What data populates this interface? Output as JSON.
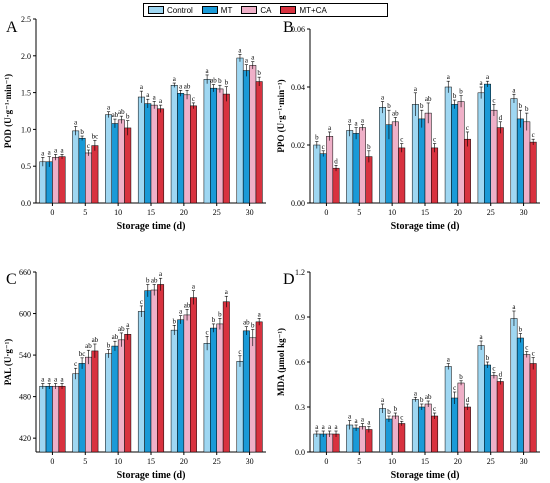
{
  "legend": {
    "series": [
      {
        "name": "Control",
        "color": "#9fd7f2"
      },
      {
        "name": "MT",
        "color": "#1a9ad7"
      },
      {
        "name": "CA",
        "color": "#efb0c8"
      },
      {
        "name": "MT+CA",
        "color": "#d8323f"
      }
    ]
  },
  "chart_data": [
    {
      "type": "bar",
      "panel": "A",
      "xlabel": "Storage time (d)",
      "ylabel": "POD (U·g⁻¹·min⁻¹)",
      "categories": [
        "0",
        "5",
        "10",
        "15",
        "20",
        "25",
        "30"
      ],
      "ylim": [
        0,
        2.5
      ],
      "yticks": [
        0.0,
        0.5,
        1.0,
        1.5,
        2.0,
        2.5
      ],
      "ytick_labels": [
        "0.0",
        "0.5",
        "1.0",
        "1.5",
        "2.0",
        "2.5"
      ],
      "series": [
        {
          "name": "Control",
          "values": [
            0.56,
            0.98,
            1.2,
            1.44,
            1.6,
            1.68,
            1.97
          ],
          "errors": [
            0.06,
            0.06,
            0.04,
            0.08,
            0.03,
            0.06,
            0.05
          ],
          "labels": [
            "a",
            "a",
            "a",
            "a",
            "a",
            "a",
            "a"
          ]
        },
        {
          "name": "MT",
          "values": [
            0.56,
            0.88,
            1.08,
            1.35,
            1.49,
            1.56,
            1.8
          ],
          "errors": [
            0.07,
            0.03,
            0.06,
            0.06,
            0.04,
            0.05,
            0.08
          ],
          "labels": [
            "a",
            "b",
            "ab",
            "a",
            "a",
            "ab",
            "a"
          ]
        },
        {
          "name": "CA",
          "values": [
            0.62,
            0.68,
            1.13,
            1.33,
            1.47,
            1.55,
            1.87
          ],
          "errors": [
            0.04,
            0.04,
            0.05,
            0.05,
            0.06,
            0.05,
            0.05
          ],
          "labels": [
            "a",
            "c",
            "ab",
            "a",
            "ab",
            "b",
            "a"
          ]
        },
        {
          "name": "MT+CA",
          "values": [
            0.63,
            0.78,
            1.02,
            1.28,
            1.32,
            1.48,
            1.65
          ],
          "errors": [
            0.03,
            0.07,
            0.1,
            0.05,
            0.04,
            0.1,
            0.06
          ],
          "labels": [
            "a",
            "bc",
            "b",
            "a",
            "c",
            "b",
            "b"
          ]
        }
      ]
    },
    {
      "type": "bar",
      "panel": "B",
      "xlabel": "Storage time (d)",
      "ylabel": "PPO (U·g⁻¹·min⁻¹)",
      "categories": [
        "0",
        "5",
        "10",
        "15",
        "20",
        "25",
        "30"
      ],
      "ylim": [
        0,
        0.06
      ],
      "yticks": [
        0.0,
        0.02,
        0.04,
        0.06
      ],
      "ytick_labels": [
        "0.00",
        "0.02",
        "0.04",
        "0.06"
      ],
      "series": [
        {
          "name": "Control",
          "values": [
            0.02,
            0.025,
            0.033,
            0.034,
            0.04,
            0.038,
            0.036
          ],
          "errors": [
            0.0012,
            0.002,
            0.002,
            0.004,
            0.002,
            0.002,
            0.0015
          ],
          "labels": [
            "b",
            "a",
            "a",
            "a",
            "a",
            "a",
            "a"
          ]
        },
        {
          "name": "MT",
          "values": [
            0.017,
            0.024,
            0.027,
            0.029,
            0.034,
            0.041,
            0.029
          ],
          "errors": [
            0.001,
            0.002,
            0.005,
            0.003,
            0.0015,
            0.001,
            0.003
          ],
          "labels": [
            "c",
            "a",
            "b",
            "b",
            "b",
            "a",
            "b"
          ]
        },
        {
          "name": "CA",
          "values": [
            0.023,
            0.026,
            0.028,
            0.031,
            0.035,
            0.032,
            0.028
          ],
          "errors": [
            0.0015,
            0.001,
            0.0015,
            0.0035,
            0.002,
            0.002,
            0.003
          ],
          "labels": [
            "a",
            "a",
            "ab",
            "ab",
            "b",
            "c",
            "b"
          ]
        },
        {
          "name": "MT+CA",
          "values": [
            0.012,
            0.016,
            0.019,
            0.019,
            0.022,
            0.026,
            0.021
          ],
          "errors": [
            0.001,
            0.002,
            0.0015,
            0.0015,
            0.0025,
            0.002,
            0.001
          ],
          "labels": [
            "d",
            "b",
            "c",
            "c",
            "c",
            "d",
            "c"
          ]
        }
      ]
    },
    {
      "type": "bar",
      "panel": "C",
      "xlabel": "Storage time (d)",
      "ylabel": "PAL (U·g⁻¹)",
      "categories": [
        "0",
        "5",
        "10",
        "15",
        "20",
        "25",
        "30"
      ],
      "ylim": [
        400,
        660
      ],
      "yticks": [
        420,
        480,
        540,
        600,
        660
      ],
      "ytick_labels": [
        "420",
        "480",
        "540",
        "600",
        "660"
      ],
      "series": [
        {
          "name": "Control",
          "values": [
            495,
            513,
            542,
            603,
            576,
            557,
            531
          ],
          "errors": [
            4,
            8,
            6,
            8,
            7,
            10,
            8
          ],
          "labels": [
            "a",
            "c",
            "b",
            "c",
            "b",
            "c",
            "c"
          ]
        },
        {
          "name": "MT",
          "values": [
            495,
            528,
            553,
            633,
            591,
            579,
            575
          ],
          "errors": [
            4,
            8,
            7,
            9,
            6,
            6,
            6
          ],
          "labels": [
            "a",
            "bc",
            "ab",
            "b",
            "a",
            "b",
            "ab"
          ]
        },
        {
          "name": "CA",
          "values": [
            495,
            537,
            562,
            634,
            598,
            585,
            565
          ],
          "errors": [
            4,
            10,
            10,
            8,
            8,
            8,
            12
          ],
          "labels": [
            "a",
            "ab",
            "ab",
            "ab",
            "ab",
            "b",
            "b"
          ]
        },
        {
          "name": "MT+CA",
          "values": [
            495,
            546,
            570,
            642,
            623,
            617,
            588
          ],
          "errors": [
            4,
            10,
            8,
            9,
            10,
            8,
            5
          ],
          "labels": [
            "a",
            "ab",
            "a",
            "a",
            "a",
            "a",
            "a"
          ]
        }
      ]
    },
    {
      "type": "bar",
      "panel": "D",
      "xlabel": "Storage time (d)",
      "ylabel": "MDA (μmol kg⁻¹)",
      "categories": [
        "0",
        "5",
        "10",
        "15",
        "20",
        "25",
        "30"
      ],
      "ylim": [
        0,
        1.2
      ],
      "yticks": [
        0.0,
        0.3,
        0.6,
        0.9,
        1.2
      ],
      "ytick_labels": [
        "0.0",
        "0.3",
        "0.6",
        "0.9",
        "1.2"
      ],
      "series": [
        {
          "name": "Control",
          "values": [
            0.12,
            0.18,
            0.29,
            0.35,
            0.57,
            0.71,
            0.89
          ],
          "errors": [
            0.02,
            0.03,
            0.03,
            0.015,
            0.02,
            0.03,
            0.05
          ],
          "labels": [
            "a",
            "a",
            "a",
            "a",
            "a",
            "a",
            "a"
          ]
        },
        {
          "name": "MT",
          "values": [
            0.12,
            0.16,
            0.22,
            0.3,
            0.36,
            0.58,
            0.76
          ],
          "errors": [
            0.02,
            0.02,
            0.02,
            0.02,
            0.04,
            0.02,
            0.03
          ],
          "labels": [
            "a",
            "a",
            "b",
            "b",
            "c",
            "b",
            "b"
          ]
        },
        {
          "name": "CA",
          "values": [
            0.12,
            0.17,
            0.24,
            0.32,
            0.46,
            0.51,
            0.65
          ],
          "errors": [
            0.02,
            0.02,
            0.02,
            0.02,
            0.015,
            0.02,
            0.02
          ],
          "labels": [
            "a",
            "a",
            "b",
            "ab",
            "b",
            "c",
            "c"
          ]
        },
        {
          "name": "MT+CA",
          "values": [
            0.12,
            0.15,
            0.19,
            0.24,
            0.3,
            0.47,
            0.59
          ],
          "errors": [
            0.02,
            0.02,
            0.015,
            0.02,
            0.02,
            0.02,
            0.04
          ],
          "labels": [
            "a",
            "a",
            "c",
            "c",
            "d",
            "d",
            "c"
          ]
        }
      ]
    }
  ]
}
